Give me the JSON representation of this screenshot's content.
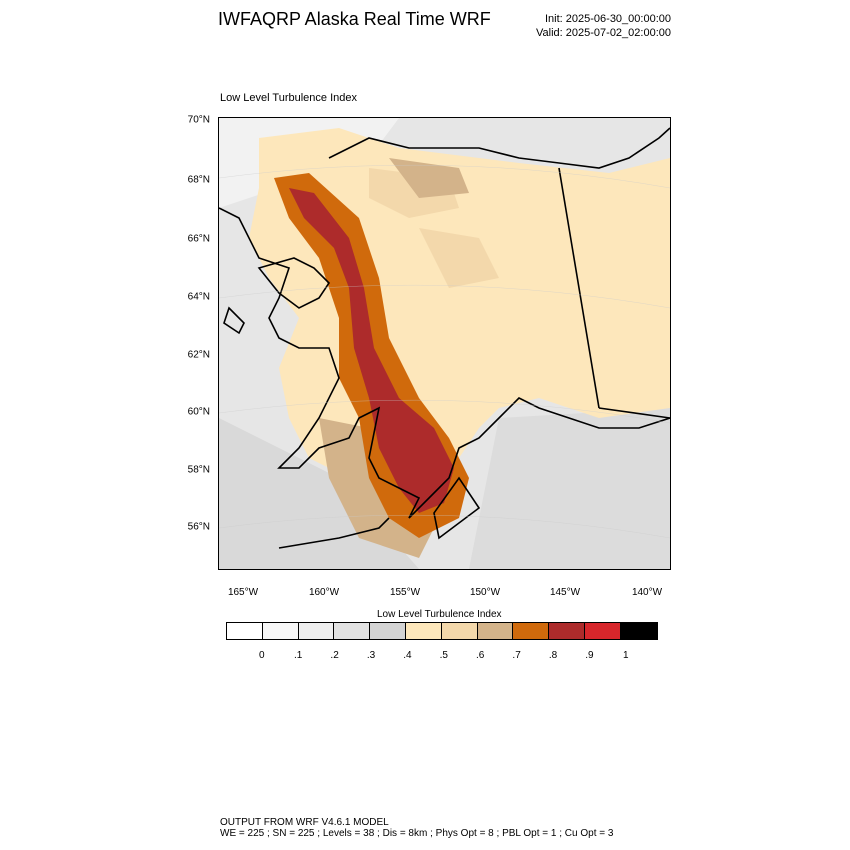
{
  "header": {
    "title": "IWFAQRP Alaska Real Time WRF",
    "init": "Init: 2025-06-30_00:00:00",
    "valid": "Valid: 2025-07-02_02:00:00"
  },
  "map": {
    "label": "Low Level Turbulence Index",
    "lat_labels": [
      "70°N",
      "68°N",
      "66°N",
      "64°N",
      "62°N",
      "60°N",
      "58°N",
      "56°N"
    ],
    "lon_labels": [
      "165°W",
      "160°W",
      "155°W",
      "150°W",
      "145°W",
      "140°W"
    ]
  },
  "colorbar": {
    "title": "Low Level Turbulence Index",
    "colors": [
      "#ffffff",
      "#f7f7f7",
      "#efefef",
      "#e2e2e2",
      "#d3d3d3",
      "#fde7bb",
      "#f3d8ab",
      "#d3b38a",
      "#d06a0c",
      "#ad2b2b",
      "#d7262b",
      "#000000"
    ],
    "ticks": [
      "0",
      ".1",
      ".2",
      ".3",
      ".4",
      ".5",
      ".6",
      ".7",
      ".8",
      ".9",
      "1"
    ]
  },
  "footer": {
    "line1": "OUTPUT FROM WRF V4.6.1 MODEL",
    "line2": "WE = 225 ; SN = 225 ; Levels = 38 ; Dis = 8km ; Phys Opt = 8 ; PBL Opt = 1 ; Cu Opt = 3"
  }
}
